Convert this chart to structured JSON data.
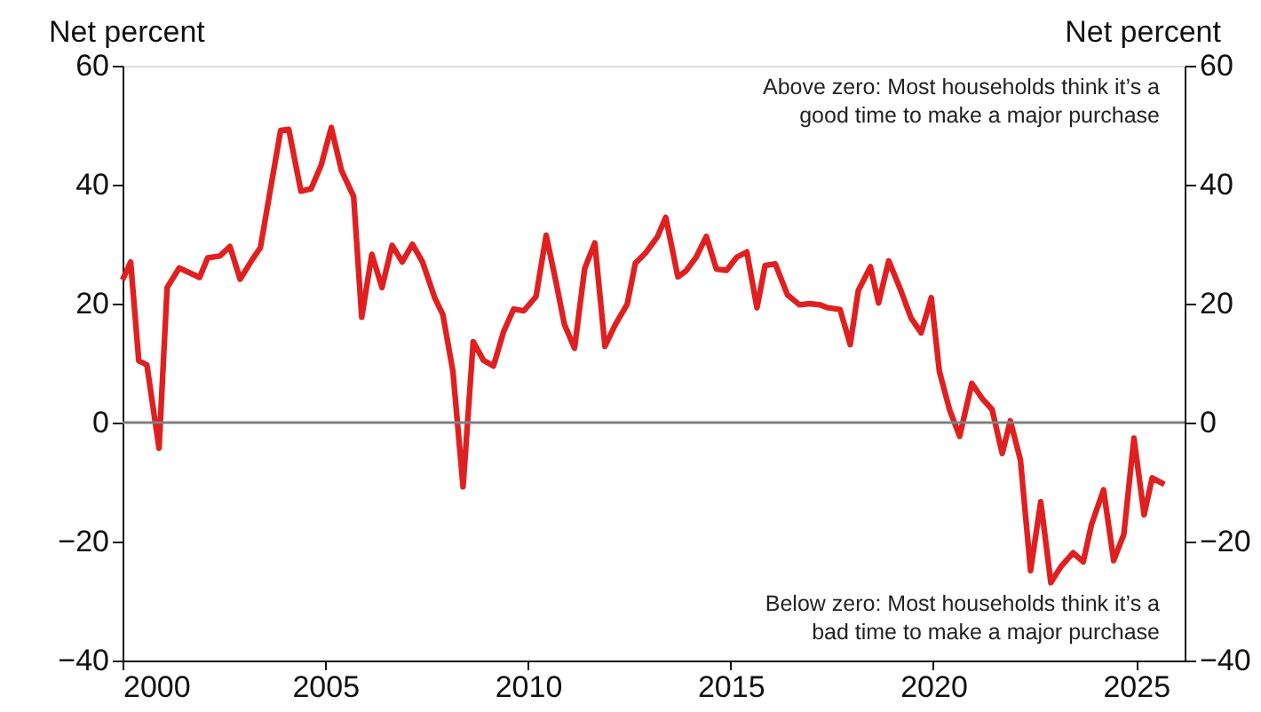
{
  "chart_data": {
    "type": "line",
    "ylabel": "Net percent",
    "y2label": "Net percent",
    "annotations": [
      "Above zero: Most households think it’s a\ngood time to make a major purchase",
      "Below zero: Most households think it’s a\nbad time to make a major purchase"
    ],
    "x": [
      2000.0,
      2000.2,
      2000.4,
      2000.6,
      2000.9,
      2001.1,
      2001.4,
      2001.9,
      2002.1,
      2002.4,
      2002.65,
      2002.9,
      2003.2,
      2003.4,
      2003.65,
      2003.9,
      2004.1,
      2004.4,
      2004.65,
      2004.9,
      2005.15,
      2005.4,
      2005.7,
      2005.9,
      2006.15,
      2006.4,
      2006.65,
      2006.9,
      2007.15,
      2007.4,
      2007.7,
      2007.9,
      2008.15,
      2008.4,
      2008.65,
      2008.9,
      2009.15,
      2009.4,
      2009.65,
      2009.9,
      2010.2,
      2010.45,
      2010.7,
      2010.9,
      2011.15,
      2011.4,
      2011.65,
      2011.9,
      2012.15,
      2012.45,
      2012.65,
      2012.9,
      2013.2,
      2013.4,
      2013.7,
      2013.9,
      2014.15,
      2014.4,
      2014.65,
      2014.9,
      2015.15,
      2015.4,
      2015.65,
      2015.85,
      2016.1,
      2016.4,
      2016.7,
      2016.95,
      2017.2,
      2017.4,
      2017.7,
      2017.95,
      2018.15,
      2018.45,
      2018.65,
      2018.9,
      2019.2,
      2019.45,
      2019.7,
      2019.95,
      2020.15,
      2020.4,
      2020.65,
      2020.95,
      2021.2,
      2021.45,
      2021.7,
      2021.9,
      2022.15,
      2022.4,
      2022.65,
      2022.9,
      2023.15,
      2023.45,
      2023.7,
      2023.9,
      2024.2,
      2024.45,
      2024.7,
      2024.95,
      2025.2,
      2025.4,
      2025.7
    ],
    "series": [
      {
        "color": "#e02020",
        "values": [
          24,
          27,
          10.4,
          9.7,
          -4.3,
          22.7,
          26,
          24.4,
          27.7,
          28,
          29.6,
          24.1,
          27.4,
          29.4,
          39.3,
          49.1,
          49.3,
          38.9,
          39.3,
          43.3,
          49.6,
          42.4,
          38,
          17.7,
          28.3,
          22.7,
          29.8,
          27,
          30,
          27,
          21,
          18.2,
          8.6,
          -10.8,
          13.6,
          10.5,
          9.5,
          15.3,
          19.1,
          18.8,
          21.2,
          31.5,
          23.4,
          16.5,
          12.5,
          25.9,
          30.2,
          12.8,
          16.4,
          19.9,
          26.8,
          28.5,
          31.3,
          34.5,
          24.5,
          25.5,
          27.8,
          31.3,
          25.8,
          25.6,
          27.8,
          28.7,
          19.3,
          26.4,
          26.7,
          21.5,
          19.8,
          20,
          19.8,
          19.3,
          19,
          13.1,
          22.2,
          26.2,
          20.1,
          27.2,
          22.2,
          17.6,
          15.1,
          21,
          8.6,
          2.2,
          -2.3,
          6.6,
          4.1,
          2.2,
          -5.2,
          0.3,
          -6.3,
          -24.9,
          -13.3,
          -26.9,
          -24.2,
          -21.9,
          -23.4,
          -17.2,
          -11.3,
          -23.2,
          -18.8,
          -2.6,
          -15.5,
          -9.3,
          -10.4
        ]
      }
    ],
    "xlim": [
      2000,
      2026.2
    ],
    "xticks": [
      2000,
      2005,
      2010,
      2015,
      2020,
      2025
    ],
    "ylim": [
      -40,
      60
    ],
    "yticks": [
      -40,
      -20,
      0,
      20,
      40,
      60
    ],
    "y2lim": [
      -40,
      60
    ],
    "y2ticks": [
      -40,
      -20,
      0,
      20,
      40,
      60
    ],
    "ref_lines": [
      {
        "axis": "y",
        "value": 0,
        "color": "#808080"
      }
    ],
    "grid": false,
    "marker": "none",
    "line_style": "solid"
  }
}
